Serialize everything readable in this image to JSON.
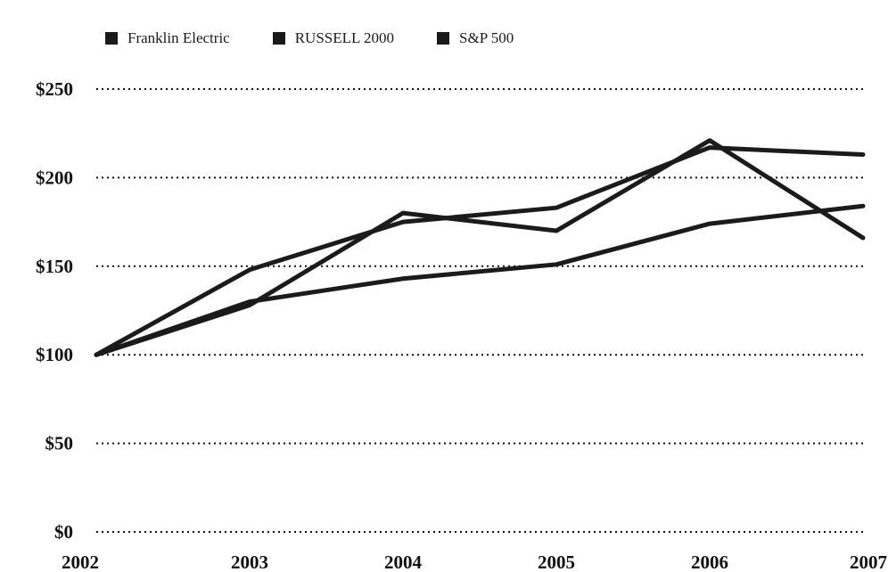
{
  "chart_data": {
    "type": "line",
    "title": "",
    "xlabel": "",
    "ylabel": "",
    "categories": [
      "2002",
      "2003",
      "2004",
      "2005",
      "2006",
      "2007"
    ],
    "y_tick_labels": [
      "$0",
      "$50",
      "$100",
      "$150",
      "$200",
      "$250"
    ],
    "y_ticks": [
      0,
      50,
      100,
      150,
      200,
      250
    ],
    "ylim": [
      0,
      250
    ],
    "grid": true,
    "legend_position": "top",
    "series": [
      {
        "name": "Franklin Electric",
        "values": [
          100,
          128,
          180,
          170,
          221,
          166
        ]
      },
      {
        "name": "RUSSELL 2000",
        "values": [
          100,
          148,
          175,
          183,
          217,
          213
        ]
      },
      {
        "name": "S&P 500",
        "values": [
          100,
          130,
          143,
          151,
          174,
          184
        ]
      }
    ],
    "line_color": "#1b1b1b"
  }
}
